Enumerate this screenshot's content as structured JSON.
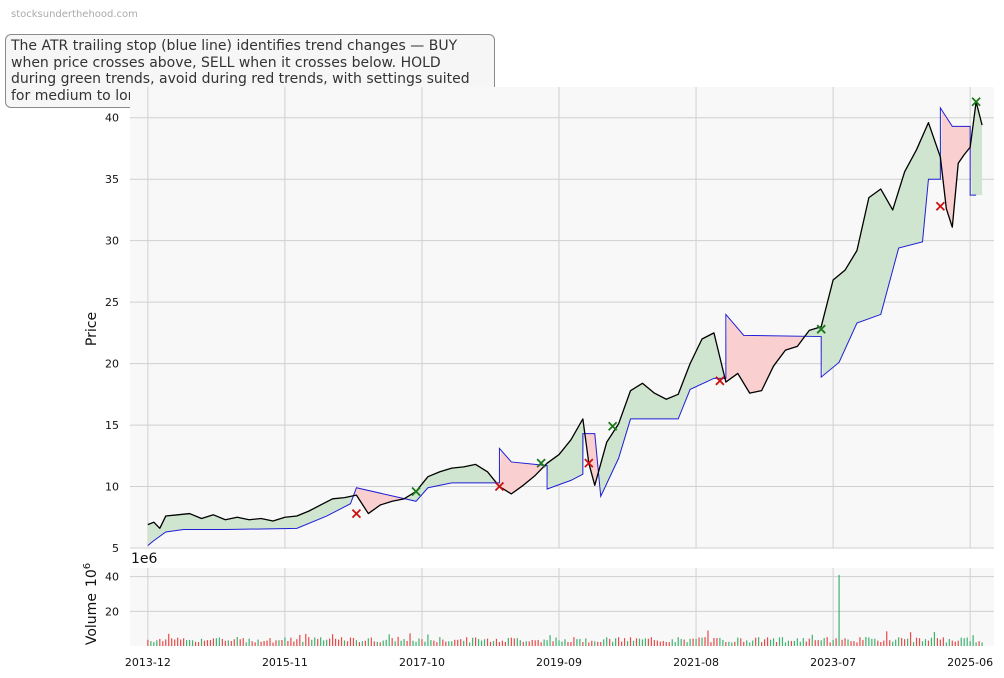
{
  "watermark": "stocksunderthehood.com",
  "note": "The ATR trailing stop (blue line) identifies trend changes — BUY when price crosses above, SELL when it crosses below. HOLD during green trends, avoid during red trends, with settings suited for medium to long-term investors.",
  "colors": {
    "price": "#000000",
    "stop": "#1f1fd6",
    "uptrend_fill": "#cfe5cf",
    "downtrend_fill": "#f9cfcf",
    "buy_marker": "#1a7a1a",
    "sell_marker": "#cc1111",
    "volume_up": "#3cb371",
    "volume_down": "#e84a4a",
    "panel_bg": "#f8f8f8",
    "grid": "#d0d0d0"
  },
  "chart_data": [
    {
      "type": "line",
      "ylabel": "Price",
      "ylim": [
        5,
        42.5
      ],
      "yticks": [
        5,
        10,
        15,
        20,
        25,
        30,
        35,
        40
      ],
      "xticks": [
        "2013-12",
        "2015-11",
        "2017-10",
        "2019-09",
        "2021-08",
        "2023-07",
        "2025-06"
      ],
      "xlim": [
        "2013-09",
        "2025-10"
      ],
      "grid": true,
      "price_points": [
        [
          "2013-12",
          6.9
        ],
        [
          "2014-01",
          7.1
        ],
        [
          "2014-02",
          6.6
        ],
        [
          "2014-03",
          7.6
        ],
        [
          "2014-05",
          7.7
        ],
        [
          "2014-07",
          7.8
        ],
        [
          "2014-09",
          7.4
        ],
        [
          "2014-11",
          7.7
        ],
        [
          "2015-01",
          7.3
        ],
        [
          "2015-03",
          7.5
        ],
        [
          "2015-05",
          7.3
        ],
        [
          "2015-07",
          7.4
        ],
        [
          "2015-09",
          7.2
        ],
        [
          "2015-11",
          7.5
        ],
        [
          "2016-01",
          7.6
        ],
        [
          "2016-03",
          8.0
        ],
        [
          "2016-05",
          8.5
        ],
        [
          "2016-07",
          9.0
        ],
        [
          "2016-09",
          9.1
        ],
        [
          "2016-11",
          9.3
        ],
        [
          "2017-01",
          7.8
        ],
        [
          "2017-03",
          8.5
        ],
        [
          "2017-05",
          8.8
        ],
        [
          "2017-07",
          9.0
        ],
        [
          "2017-09",
          9.6
        ],
        [
          "2017-11",
          10.8
        ],
        [
          "2018-01",
          11.2
        ],
        [
          "2018-03",
          11.5
        ],
        [
          "2018-05",
          11.6
        ],
        [
          "2018-07",
          11.8
        ],
        [
          "2018-09",
          11.2
        ],
        [
          "2018-11",
          10.0
        ],
        [
          "2019-01",
          9.4
        ],
        [
          "2019-03",
          10.1
        ],
        [
          "2019-05",
          10.9
        ],
        [
          "2019-07",
          11.9
        ],
        [
          "2019-09",
          12.6
        ],
        [
          "2019-11",
          13.8
        ],
        [
          "2020-01",
          15.5
        ],
        [
          "2020-02",
          11.9
        ],
        [
          "2020-03",
          10.1
        ],
        [
          "2020-05",
          13.6
        ],
        [
          "2020-07",
          15.1
        ],
        [
          "2020-09",
          17.8
        ],
        [
          "2020-11",
          18.4
        ],
        [
          "2021-01",
          17.6
        ],
        [
          "2021-03",
          17.1
        ],
        [
          "2021-05",
          17.5
        ],
        [
          "2021-07",
          20.0
        ],
        [
          "2021-09",
          22.0
        ],
        [
          "2021-11",
          22.5
        ],
        [
          "2022-01",
          18.5
        ],
        [
          "2022-03",
          19.2
        ],
        [
          "2022-05",
          17.6
        ],
        [
          "2022-07",
          17.8
        ],
        [
          "2022-09",
          19.8
        ],
        [
          "2022-11",
          21.1
        ],
        [
          "2023-01",
          21.4
        ],
        [
          "2023-03",
          22.7
        ],
        [
          "2023-05",
          23.0
        ],
        [
          "2023-07",
          26.8
        ],
        [
          "2023-09",
          27.6
        ],
        [
          "2023-11",
          29.2
        ],
        [
          "2024-01",
          33.5
        ],
        [
          "2024-03",
          34.2
        ],
        [
          "2024-05",
          32.5
        ],
        [
          "2024-07",
          35.6
        ],
        [
          "2024-09",
          37.4
        ],
        [
          "2024-11",
          39.6
        ],
        [
          "2025-01",
          36.8
        ],
        [
          "2025-02",
          32.6
        ],
        [
          "2025-03",
          31.1
        ],
        [
          "2025-04",
          36.3
        ],
        [
          "2025-05",
          37.0
        ],
        [
          "2025-06",
          37.6
        ],
        [
          "2025-07",
          41.3
        ],
        [
          "2025-08",
          39.4
        ]
      ],
      "stop_points": [
        [
          "2013-12",
          5.2
        ],
        [
          "2014-01",
          5.6
        ],
        [
          "2014-03",
          6.3
        ],
        [
          "2014-06",
          6.5
        ],
        [
          "2015-01",
          6.5
        ],
        [
          "2016-01",
          6.6
        ],
        [
          "2016-06",
          7.6
        ],
        [
          "2016-10",
          8.6
        ],
        [
          "2016-11",
          9.9
        ],
        [
          "2017-09",
          8.8
        ],
        [
          "2017-11",
          9.9
        ],
        [
          "2018-03",
          10.3
        ],
        [
          "2018-11",
          10.3
        ],
        [
          "2018-11",
          13.1
        ],
        [
          "2019-01",
          12.0
        ],
        [
          "2019-07",
          11.7
        ],
        [
          "2019-07",
          9.8
        ],
        [
          "2019-11",
          10.5
        ],
        [
          "2020-01",
          11.0
        ],
        [
          "2020-01",
          14.3
        ],
        [
          "2020-03",
          14.3
        ],
        [
          "2020-04",
          9.2
        ],
        [
          "2020-07",
          12.3
        ],
        [
          "2020-09",
          15.5
        ],
        [
          "2021-05",
          15.5
        ],
        [
          "2021-07",
          17.9
        ],
        [
          "2021-11",
          18.8
        ],
        [
          "2022-01",
          18.8
        ],
        [
          "2022-01",
          24.0
        ],
        [
          "2022-04",
          22.3
        ],
        [
          "2023-05",
          22.2
        ],
        [
          "2023-05",
          18.9
        ],
        [
          "2023-08",
          20.1
        ],
        [
          "2023-11",
          23.3
        ],
        [
          "2024-03",
          24.0
        ],
        [
          "2024-06",
          29.4
        ],
        [
          "2024-10",
          29.9
        ],
        [
          "2024-11",
          35.0
        ],
        [
          "2025-01",
          35.0
        ],
        [
          "2025-01",
          40.8
        ],
        [
          "2025-03",
          39.3
        ],
        [
          "2025-06",
          39.3
        ],
        [
          "2025-06",
          33.7
        ],
        [
          "2025-07",
          33.7
        ]
      ],
      "buy_signals": [
        [
          "2017-09",
          9.6
        ],
        [
          "2019-06",
          11.9
        ],
        [
          "2020-06",
          14.9
        ],
        [
          "2023-05",
          22.8
        ],
        [
          "2025-07",
          41.3
        ]
      ],
      "sell_signals": [
        [
          "2016-11",
          7.8
        ],
        [
          "2018-11",
          10.0
        ],
        [
          "2020-02",
          11.9
        ],
        [
          "2021-12",
          18.6
        ],
        [
          "2025-01",
          32.8
        ]
      ]
    },
    {
      "type": "bar",
      "ylabel": "Volume",
      "ylabel_exponent": "6",
      "offset_text": "1e6",
      "ylim": [
        0,
        45
      ],
      "yticks": [
        20,
        40
      ],
      "spike": {
        "x": "2023-08",
        "value": 41
      }
    }
  ]
}
